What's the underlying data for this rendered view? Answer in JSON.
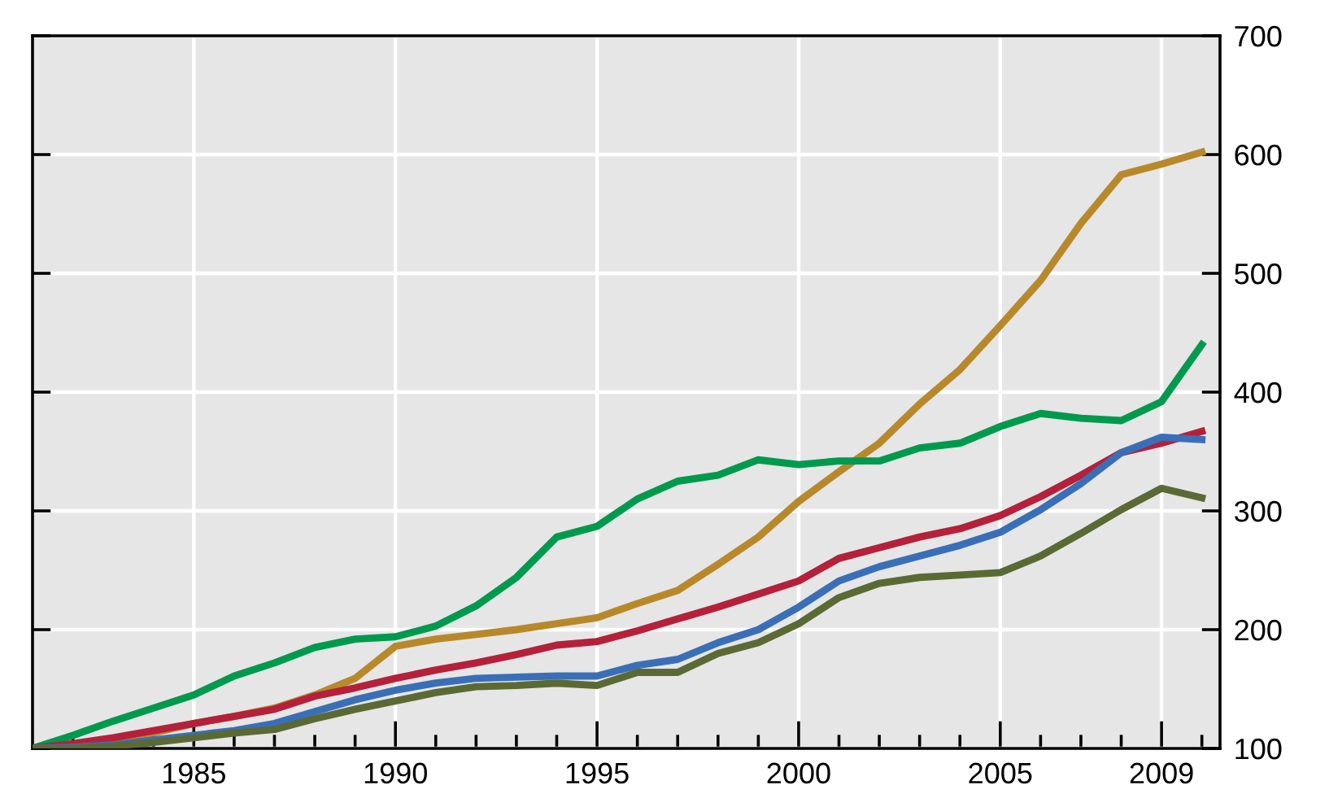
{
  "chart_data": {
    "type": "line",
    "x": [
      1981,
      1982,
      1983,
      1984,
      1985,
      1986,
      1987,
      1988,
      1989,
      1990,
      1991,
      1992,
      1993,
      1994,
      1995,
      1996,
      1997,
      1998,
      1999,
      2000,
      2001,
      2002,
      2003,
      2004,
      2005,
      2006,
      2007,
      2008,
      2009,
      2010
    ],
    "series": [
      {
        "color": "#b8892a",
        "values": [
          100,
          103,
          107,
          113,
          121,
          127,
          134,
          145,
          159,
          186,
          192,
          196,
          200,
          205,
          210,
          222,
          233,
          255,
          278,
          308,
          333,
          357,
          390,
          419,
          456,
          494,
          542,
          583,
          592,
          602
        ]
      },
      {
        "color": "#009a4e",
        "values": [
          100,
          111,
          123,
          134,
          145,
          161,
          172,
          185,
          192,
          194,
          203,
          220,
          244,
          278,
          287,
          310,
          325,
          330,
          343,
          339,
          342,
          342,
          353,
          357,
          371,
          382,
          378,
          376,
          392,
          440
        ]
      },
      {
        "color": "#b5203a",
        "values": [
          100,
          104,
          109,
          115,
          121,
          127,
          133,
          144,
          151,
          159,
          166,
          172,
          179,
          187,
          190,
          199,
          209,
          219,
          230,
          241,
          260,
          269,
          278,
          285,
          296,
          312,
          330,
          349,
          357,
          367
        ]
      },
      {
        "color": "#3a6fb8",
        "values": [
          100,
          101,
          103,
          107,
          111,
          115,
          121,
          131,
          141,
          149,
          155,
          159,
          160,
          161,
          161,
          170,
          175,
          189,
          200,
          219,
          241,
          253,
          262,
          271,
          282,
          301,
          323,
          349,
          362,
          360
        ]
      },
      {
        "color": "#5b6a35",
        "values": [
          100,
          100,
          102,
          105,
          109,
          113,
          116,
          125,
          133,
          140,
          147,
          152,
          153,
          155,
          153,
          164,
          164,
          180,
          189,
          205,
          227,
          239,
          244,
          246,
          248,
          262,
          281,
          301,
          319,
          311
        ]
      }
    ],
    "xlim": [
      1981,
      2010.45
    ],
    "xticks": [
      {
        "value": 1982,
        "label": null
      },
      {
        "value": 1983,
        "label": null
      },
      {
        "value": 1984,
        "label": null
      },
      1985,
      {
        "value": 1986,
        "label": null
      },
      {
        "value": 1987,
        "label": null
      },
      {
        "value": 1988,
        "label": null
      },
      {
        "value": 1989,
        "label": null
      },
      1990,
      {
        "value": 1991,
        "label": null
      },
      {
        "value": 1992,
        "label": null
      },
      {
        "value": 1993,
        "label": null
      },
      {
        "value": 1994,
        "label": null
      },
      1995,
      {
        "value": 1996,
        "label": null
      },
      {
        "value": 1997,
        "label": null
      },
      {
        "value": 1998,
        "label": null
      },
      {
        "value": 1999,
        "label": null
      },
      2000,
      {
        "value": 2001,
        "label": null
      },
      {
        "value": 2002,
        "label": null
      },
      {
        "value": 2003,
        "label": null
      },
      {
        "value": 2004,
        "label": null
      },
      2005,
      {
        "value": 2006,
        "label": null
      },
      {
        "value": 2007,
        "label": null
      },
      {
        "value": 2008,
        "label": null
      },
      2009,
      {
        "value": 2010,
        "label": null
      }
    ],
    "ylim": [
      100,
      700
    ],
    "yticks": [
      100,
      200,
      300,
      400,
      500,
      600,
      700
    ],
    "grid": true,
    "legend": false,
    "line_style": "solid",
    "marker": "none"
  }
}
